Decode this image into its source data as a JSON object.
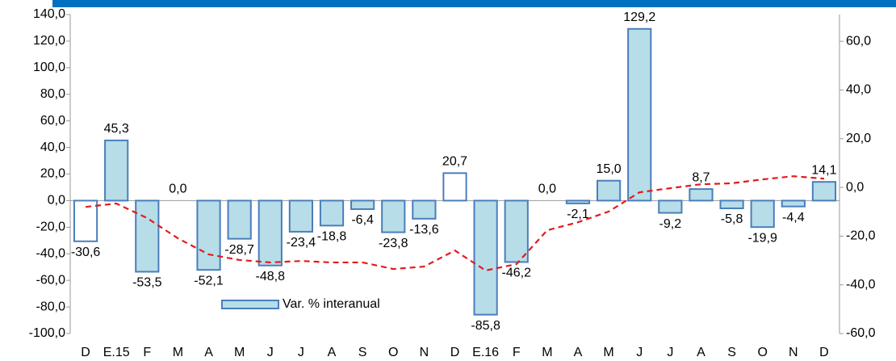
{
  "chart_data": {
    "type": "bar",
    "categories": [
      "D",
      "E.15",
      "F",
      "M",
      "A",
      "M",
      "J",
      "J",
      "A",
      "S",
      "O",
      "N",
      "D",
      "E.16",
      "F",
      "M",
      "A",
      "M",
      "J",
      "J",
      "A",
      "S",
      "O",
      "N",
      "D"
    ],
    "series": [
      {
        "name": "Var. % interanual",
        "type": "bar",
        "color": "#b7dde8",
        "edge_color": "#4a7ebb",
        "bar_colors": [
          "#ffffff",
          "#b7dde8",
          "#b7dde8",
          "#b7dde8",
          "#b7dde8",
          "#b7dde8",
          "#b7dde8",
          "#b7dde8",
          "#b7dde8",
          "#b7dde8",
          "#b7dde8",
          "#b7dde8",
          "#ffffff",
          "#b7dde8",
          "#b7dde8",
          "#b7dde8",
          "#b7dde8",
          "#b7dde8",
          "#b7dde8",
          "#b7dde8",
          "#b7dde8",
          "#b7dde8",
          "#b7dde8",
          "#b7dde8",
          "#b7dde8"
        ],
        "values": [
          -30.6,
          45.3,
          -53.5,
          0.0,
          -52.1,
          -28.7,
          -48.8,
          -23.4,
          -18.8,
          -6.4,
          -23.8,
          -13.6,
          20.7,
          -85.8,
          -46.2,
          0.0,
          -2.1,
          15.0,
          129.2,
          -9.2,
          8.7,
          -5.8,
          -19.9,
          -4.4,
          14.1
        ],
        "value_labels": [
          "-30,6",
          "45,3",
          "-53,5",
          "0,0",
          "-52,1",
          "-28,7",
          "-48,8",
          "-23,4",
          "-18,8",
          "-6,4",
          "-23,8",
          "-13,6",
          "20,7",
          "-85,8",
          "-46,2",
          "0,0",
          "-2,1",
          "15,0",
          "129,2",
          "-9,2",
          "8,7",
          "-5,8",
          "-19,9",
          "-4,4",
          "14,1"
        ]
      },
      {
        "type": "line",
        "axis": "y2",
        "color": "#e41a1c",
        "dashed": true,
        "values": [
          -8.0,
          -6.6,
          -12.6,
          -20.9,
          -27.5,
          -29.8,
          -30.8,
          -30.2,
          -30.8,
          -30.8,
          -33.5,
          -32.5,
          -25.9,
          -34.1,
          -31.5,
          -17.6,
          -14.3,
          -9.9,
          -2.0,
          -0.3,
          1.3,
          1.7,
          3.3,
          4.6,
          3.6
        ]
      }
    ],
    "ylim": [
      -100,
      140
    ],
    "yticks": [
      {
        "value": -100,
        "label": "-100,0"
      },
      {
        "value": -80,
        "label": "-80,0"
      },
      {
        "value": -60,
        "label": "-60,0"
      },
      {
        "value": -40,
        "label": "-40,0"
      },
      {
        "value": -20,
        "label": "-20,0"
      },
      {
        "value": 0,
        "label": "0,0"
      },
      {
        "value": 20,
        "label": "20,0"
      },
      {
        "value": 40,
        "label": "40,0"
      },
      {
        "value": 60,
        "label": "60,0"
      },
      {
        "value": 80,
        "label": "80,0"
      },
      {
        "value": 100,
        "label": "100,0"
      },
      {
        "value": 120,
        "label": "120,0"
      },
      {
        "value": 140,
        "label": "140,0"
      }
    ],
    "y2lim": [
      -60,
      71
    ],
    "y2ticks": [
      {
        "value": -60,
        "label": "-60,0"
      },
      {
        "value": -40,
        "label": "-40,0"
      },
      {
        "value": -20,
        "label": "-20,0"
      },
      {
        "value": 0,
        "label": "0,0"
      },
      {
        "value": 20,
        "label": "20,0"
      },
      {
        "value": 40,
        "label": "40,0"
      },
      {
        "value": 60,
        "label": "60,0"
      }
    ],
    "legend": "bottom-center"
  }
}
